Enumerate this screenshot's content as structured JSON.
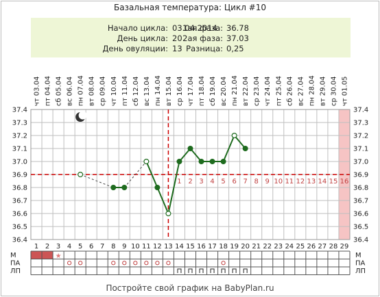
{
  "title": "Базальная температура: Цикл #10",
  "info": {
    "cycle_start_label": "Начало цикла:",
    "cycle_start": "03.04.2014",
    "cycle_day_label": "День цикла:",
    "cycle_day": "20",
    "ovulation_day_label": "День овуляции:",
    "ovulation_day": "13",
    "phase1_label": "1ая фаза:",
    "phase1": "36.78",
    "phase2_label": "2ая фаза:",
    "phase2": "37.03",
    "diff_label": "Разница:",
    "diff": "0,25"
  },
  "footer": "Постройте свой график на BabyPlan.ru",
  "colors": {
    "line": "#1e6b1e",
    "coverline": "#cc0000",
    "period": "#cc5555",
    "future": "#f6c4c4",
    "info_bg": "#eef6d6",
    "grid": "#bfbfbf",
    "star": "#e07a7a"
  },
  "chart_data": {
    "type": "line",
    "title": "Базальная температура: Цикл #10",
    "x": [
      1,
      2,
      3,
      4,
      5,
      6,
      7,
      8,
      9,
      10,
      11,
      12,
      13,
      14,
      15,
      16,
      17,
      18,
      19,
      20,
      21,
      22,
      23,
      24,
      25,
      26,
      27,
      28,
      29
    ],
    "dates": [
      "03.04",
      "04.04",
      "05.04",
      "06.04",
      "07.04",
      "08.04",
      "09.04",
      "10.04",
      "11.04",
      "12.04",
      "13.04",
      "14.04",
      "15.04",
      "16.04",
      "17.04",
      "18.04",
      "19.04",
      "20.04",
      "21.04",
      "22.04",
      "23.04",
      "24.04",
      "25.04",
      "26.04",
      "27.04",
      "28.04",
      "29.04",
      "30.04",
      "01.05"
    ],
    "weekdays": [
      "чт",
      "пт",
      "сб",
      "вс",
      "пн",
      "вт",
      "ср",
      "чт",
      "пт",
      "сб",
      "вс",
      "пн",
      "вт",
      "ср",
      "чт",
      "пт",
      "сб",
      "вс",
      "пн",
      "вт",
      "ср",
      "чт",
      "пт",
      "сб",
      "вс",
      "пн",
      "вт",
      "ср",
      "чт"
    ],
    "series": [
      {
        "values": [
          null,
          null,
          null,
          null,
          36.9,
          null,
          null,
          36.8,
          36.8,
          null,
          37.0,
          36.8,
          36.6,
          37.0,
          37.1,
          37.0,
          37.0,
          37.0,
          37.2,
          37.1,
          null,
          null,
          null,
          null,
          null,
          null,
          null,
          null,
          null
        ]
      }
    ],
    "hollow_points": [
      5,
      11,
      13,
      19
    ],
    "ylim": [
      36.4,
      37.4
    ],
    "yticks": [
      "36.4",
      "36.5",
      "36.6",
      "36.7",
      "36.8",
      "36.9",
      "37.0",
      "37.1",
      "37.2",
      "37.3",
      "37.4"
    ],
    "coverline": 36.9,
    "ovulation_day": 13,
    "phase2_count_labels": [
      "1",
      "2",
      "3",
      "4",
      "5",
      "6",
      "7",
      "8",
      "9",
      "10",
      "11",
      "12",
      "13",
      "14",
      "15",
      "16"
    ],
    "grid": true,
    "moon_day": 5,
    "bottom_rows": {
      "labels": [
        "М",
        "ПА",
        "ЛП"
      ],
      "period_days": [
        1,
        2
      ],
      "star_day": 3,
      "pa_days": [
        4,
        5,
        8,
        9,
        10,
        11,
        12,
        13,
        18
      ],
      "lp_days": [
        14,
        15,
        16,
        17,
        18,
        19,
        20
      ]
    }
  }
}
